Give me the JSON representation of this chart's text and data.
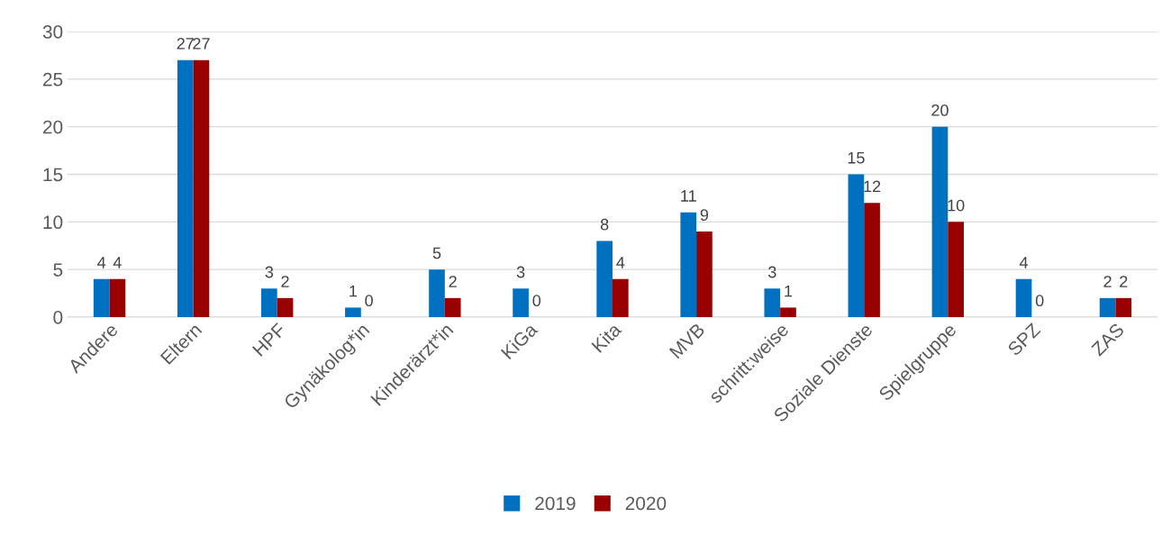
{
  "chart_data": {
    "type": "bar",
    "categories": [
      "Andere",
      "Eltern",
      "HPF",
      "Gynäkolog*in",
      "Kinderärzt*in",
      "KiGa",
      "Kita",
      "MVB",
      "schritt:weise",
      "Soziale Dienste",
      "Spielgruppe",
      "SPZ",
      "ZAS"
    ],
    "series": [
      {
        "name": "2019",
        "color": "#0070c0",
        "values": [
          4,
          27,
          3,
          1,
          5,
          3,
          8,
          11,
          3,
          15,
          20,
          4,
          2
        ]
      },
      {
        "name": "2020",
        "color": "#990000",
        "values": [
          4,
          27,
          2,
          0,
          2,
          0,
          4,
          9,
          1,
          12,
          10,
          0,
          2
        ]
      }
    ],
    "ylim": [
      0,
      30
    ],
    "yticks": [
      0,
      5,
      10,
      15,
      20,
      25,
      30
    ],
    "grid": "y",
    "legend": "bottom",
    "data_labels": true
  }
}
